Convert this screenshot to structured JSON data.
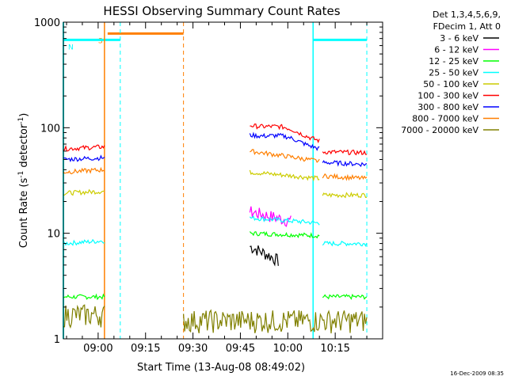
{
  "chart_data": {
    "type": "line",
    "title": "HESSI Observing Summary Count Rates",
    "xlabel": "Start Time (13-Aug-08 08:49:02)",
    "ylabel": "Count Rate (s",
    "ylabel_sup": "-1",
    "ylabel_tail": " detector",
    "ylabel_end": ")",
    "y_scale": "log",
    "ylim": [
      1,
      1000
    ],
    "xlim_minutes": [
      0,
      101
    ],
    "y_ticks": [
      {
        "v": 1,
        "label": "1"
      },
      {
        "v": 10,
        "label": "10"
      },
      {
        "v": 100,
        "label": "100"
      },
      {
        "v": 1000,
        "label": "1000"
      }
    ],
    "x_ticks": [
      {
        "min": 11,
        "label": "09:00"
      },
      {
        "min": 26,
        "label": "09:15"
      },
      {
        "min": 41,
        "label": "09:30"
      },
      {
        "min": 56,
        "label": "09:45"
      },
      {
        "min": 71,
        "label": "10:00"
      },
      {
        "min": 86,
        "label": "10:15"
      }
    ],
    "legend": {
      "header": [
        "Det 1,3,4,5,6,9,",
        "FDecim 1, Att 0"
      ],
      "placement": "right"
    },
    "series": [
      {
        "name": "3 - 6 keV",
        "color": "#000000",
        "segments": [
          {
            "x0": 59,
            "x1": 68,
            "y0": 7.5,
            "y1": 5.5
          }
        ]
      },
      {
        "name": "6 - 12 keV",
        "color": "#ff00ff",
        "segments": [
          {
            "x0": 59,
            "x1": 72,
            "y0": 16.0,
            "y1": 13.0
          }
        ]
      },
      {
        "name": "12 - 25 keV",
        "color": "#00ff00",
        "segments": [
          {
            "x0": 0,
            "x1": 13,
            "y0": 2.5,
            "y1": 2.5
          },
          {
            "x0": 59,
            "x1": 81,
            "y0": 10.0,
            "y1": 9.5
          },
          {
            "x0": 82,
            "x1": 96,
            "y0": 2.5,
            "y1": 2.5
          }
        ]
      },
      {
        "name": "25 - 50 keV",
        "color": "#00ffff",
        "segments": [
          {
            "x0": 0,
            "x1": 13,
            "y0": 8.0,
            "y1": 8.5
          },
          {
            "x0": 59,
            "x1": 81,
            "y0": 14.0,
            "y1": 12.5
          },
          {
            "x0": 82,
            "x1": 96,
            "y0": 8.0,
            "y1": 8.0
          }
        ]
      },
      {
        "name": "50 - 100 keV",
        "color": "#cccc00",
        "segments": [
          {
            "x0": 0,
            "x1": 13,
            "y0": 24,
            "y1": 25
          },
          {
            "x0": 59,
            "x1": 81,
            "y0": 38,
            "y1": 33
          },
          {
            "x0": 82,
            "x1": 96,
            "y0": 23,
            "y1": 23
          }
        ]
      },
      {
        "name": "100 - 300 keV",
        "color": "#ff0000",
        "segments": [
          {
            "x0": 0,
            "x1": 13,
            "y0": 63,
            "y1": 66
          },
          {
            "x0": 59,
            "x1": 81,
            "y0": 105,
            "y1": 75
          },
          {
            "x0": 82,
            "x1": 96,
            "y0": 59,
            "y1": 58
          }
        ]
      },
      {
        "name": "300 - 800 keV",
        "color": "#0000ff",
        "segments": [
          {
            "x0": 0,
            "x1": 13,
            "y0": 50,
            "y1": 52
          },
          {
            "x0": 59,
            "x1": 81,
            "y0": 85,
            "y1": 63
          },
          {
            "x0": 82,
            "x1": 96,
            "y0": 47,
            "y1": 45
          }
        ]
      },
      {
        "name": "800 - 7000 keV",
        "color": "#ff7f00",
        "segments": [
          {
            "x0": 0,
            "x1": 13,
            "y0": 38,
            "y1": 40
          },
          {
            "x0": 59,
            "x1": 81,
            "y0": 60,
            "y1": 48
          },
          {
            "x0": 82,
            "x1": 96,
            "y0": 35,
            "y1": 33
          }
        ]
      },
      {
        "name": "7000 - 20000 keV",
        "color": "#808000",
        "segments": [
          {
            "x0": 0,
            "x1": 13,
            "y0": 1.7,
            "y1": 1.7
          },
          {
            "x0": 38,
            "x1": 96,
            "y0": 1.5,
            "y1": 1.5
          }
        ]
      }
    ],
    "flags": [
      {
        "label": "S",
        "color": "#ff7f00",
        "x0": 14,
        "x1": 38,
        "y": 780,
        "dashed_line": 38
      },
      {
        "label": "N",
        "color": "#00ffff",
        "x0": 0,
        "x1": 18,
        "y": 680,
        "dashed_line": 18
      },
      {
        "label": "",
        "color": "#00ffff",
        "x0": 79,
        "x1": 96,
        "y": 680,
        "dashed_line": 96
      }
    ],
    "grid": false
  },
  "footer": {
    "date_stamp": "16-Dec-2009 08:35"
  }
}
